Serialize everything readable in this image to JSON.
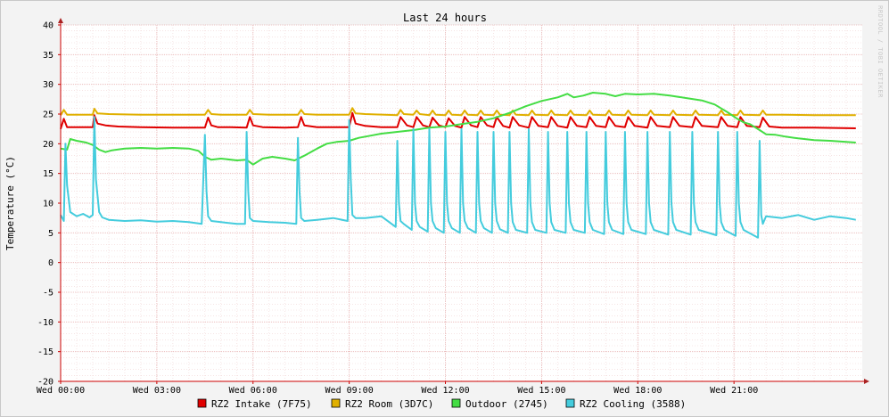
{
  "chart_data": {
    "type": "line",
    "title": "Last 24 hours",
    "ylabel": "Temperature (°C)",
    "xlabel": "",
    "watermark": "RRDTOOL / TOBI OETIKER",
    "ylim": [
      -20,
      40
    ],
    "yticks": [
      -20,
      -15,
      -10,
      -5,
      0,
      5,
      10,
      15,
      20,
      25,
      30,
      35,
      40
    ],
    "xlim": [
      0,
      25.0
    ],
    "xticks": [
      {
        "value": 0,
        "label": "Wed 00:00"
      },
      {
        "value": 3,
        "label": "Wed 03:00"
      },
      {
        "value": 6,
        "label": "Wed 06:00"
      },
      {
        "value": 9,
        "label": "Wed 09:00"
      },
      {
        "value": 12,
        "label": "Wed 12:00"
      },
      {
        "value": 15,
        "label": "Wed 15:00"
      },
      {
        "value": 18,
        "label": "Wed 18:00"
      },
      {
        "value": 21,
        "label": "Wed 21:00"
      }
    ],
    "grid": true,
    "legend_position": "bottom",
    "background": "#f3f3f3",
    "plot_background": "#ffffff",
    "grid_color": "#e8b4b4",
    "series": [
      {
        "name": "RZ2 Intake (7F75)",
        "color": "#e00000",
        "x": [
          0.0,
          0.1,
          0.2,
          0.5,
          1.0,
          1.05,
          1.15,
          1.4,
          1.8,
          2.5,
          3.5,
          4.5,
          4.6,
          4.7,
          4.9,
          5.3,
          5.8,
          5.9,
          6.0,
          6.3,
          7.0,
          7.4,
          7.5,
          7.6,
          8.0,
          8.8,
          9.0,
          9.1,
          9.2,
          9.5,
          10.0,
          10.5,
          10.6,
          10.8,
          11.0,
          11.1,
          11.3,
          11.5,
          11.6,
          11.8,
          12.0,
          12.1,
          12.3,
          12.5,
          12.6,
          12.8,
          13.0,
          13.1,
          13.3,
          13.5,
          13.6,
          13.8,
          14.0,
          14.1,
          14.3,
          14.6,
          14.7,
          14.9,
          15.2,
          15.3,
          15.5,
          15.8,
          15.9,
          16.1,
          16.4,
          16.5,
          16.7,
          17.0,
          17.1,
          17.3,
          17.6,
          17.7,
          17.9,
          18.3,
          18.4,
          18.6,
          19.0,
          19.1,
          19.3,
          19.7,
          19.8,
          20.0,
          20.5,
          20.6,
          20.8,
          21.1,
          21.2,
          21.4,
          21.8,
          21.9,
          22.1,
          22.5,
          23.5,
          24.8
        ],
        "y": [
          22.5,
          24.2,
          22.8,
          22.8,
          22.8,
          24.8,
          23.4,
          23.1,
          22.9,
          22.8,
          22.7,
          22.7,
          24.4,
          23.1,
          22.8,
          22.8,
          22.7,
          24.5,
          23.1,
          22.8,
          22.7,
          22.8,
          24.5,
          23.1,
          22.8,
          22.8,
          22.8,
          25.2,
          23.4,
          23.0,
          22.8,
          22.8,
          24.5,
          23.1,
          22.8,
          24.5,
          23.1,
          22.8,
          24.4,
          23.1,
          22.8,
          24.3,
          23.0,
          22.7,
          24.5,
          23.1,
          22.8,
          24.5,
          23.1,
          22.8,
          24.5,
          23.0,
          22.7,
          24.5,
          23.1,
          22.7,
          24.5,
          23.0,
          22.8,
          24.5,
          23.0,
          22.7,
          24.5,
          23.0,
          22.8,
          24.5,
          23.0,
          22.8,
          24.5,
          23.0,
          22.8,
          24.5,
          23.0,
          22.7,
          24.5,
          23.0,
          22.8,
          24.5,
          23.0,
          22.8,
          24.5,
          23.0,
          22.8,
          24.5,
          23.0,
          22.8,
          24.5,
          23.0,
          22.8,
          24.4,
          22.9,
          22.7,
          22.7,
          22.6
        ]
      },
      {
        "name": "RZ2 Room (3D7C)",
        "color": "#e0b000",
        "x": [
          0.0,
          0.1,
          0.2,
          0.5,
          1.0,
          1.05,
          1.15,
          1.5,
          2.5,
          3.5,
          4.5,
          4.6,
          4.7,
          5.0,
          5.8,
          5.9,
          6.0,
          6.5,
          7.4,
          7.5,
          7.6,
          8.0,
          9.0,
          9.1,
          9.2,
          9.5,
          10.5,
          10.6,
          10.7,
          11.0,
          11.1,
          11.2,
          11.5,
          11.6,
          11.7,
          12.0,
          12.1,
          12.2,
          12.5,
          12.6,
          12.7,
          13.0,
          13.1,
          13.2,
          13.5,
          13.6,
          13.7,
          14.0,
          14.1,
          14.2,
          14.6,
          14.7,
          14.8,
          15.2,
          15.3,
          15.4,
          15.8,
          15.9,
          16.0,
          16.4,
          16.5,
          16.6,
          17.0,
          17.1,
          17.2,
          17.6,
          17.7,
          17.8,
          18.3,
          18.4,
          18.5,
          19.0,
          19.1,
          19.2,
          19.7,
          19.8,
          19.9,
          20.5,
          20.6,
          20.7,
          21.1,
          21.2,
          21.3,
          21.8,
          21.9,
          22.0,
          22.5,
          23.5,
          24.8
        ],
        "y": [
          24.8,
          25.7,
          24.9,
          24.9,
          24.9,
          25.9,
          25.1,
          25.0,
          24.9,
          24.9,
          24.9,
          25.7,
          25.0,
          24.9,
          24.9,
          25.7,
          25.0,
          24.9,
          24.9,
          25.7,
          25.0,
          24.9,
          24.9,
          26.0,
          25.1,
          25.0,
          24.8,
          25.7,
          25.0,
          24.9,
          25.6,
          25.0,
          24.8,
          25.6,
          24.9,
          24.8,
          25.6,
          24.9,
          24.8,
          25.6,
          24.9,
          24.8,
          25.6,
          24.9,
          24.8,
          25.6,
          24.9,
          24.8,
          25.6,
          24.9,
          24.8,
          25.6,
          24.9,
          24.8,
          25.6,
          24.9,
          24.8,
          25.6,
          24.9,
          24.8,
          25.6,
          24.9,
          24.8,
          25.6,
          24.9,
          24.8,
          25.6,
          24.9,
          24.8,
          25.6,
          24.9,
          24.8,
          25.6,
          24.9,
          24.8,
          25.6,
          24.9,
          24.8,
          25.6,
          24.9,
          24.8,
          25.6,
          24.9,
          24.8,
          25.6,
          24.9,
          24.9,
          24.8,
          24.8
        ]
      },
      {
        "name": "Outdoor (2745)",
        "color": "#44dd44",
        "x": [
          0.0,
          0.2,
          0.3,
          0.5,
          0.8,
          1.0,
          1.2,
          1.4,
          1.6,
          2.0,
          2.5,
          3.0,
          3.5,
          4.0,
          4.3,
          4.5,
          4.7,
          5.0,
          5.5,
          5.8,
          6.0,
          6.3,
          6.6,
          7.0,
          7.3,
          7.6,
          8.0,
          8.3,
          8.6,
          9.0,
          9.3,
          9.6,
          10.0,
          10.5,
          11.0,
          11.5,
          12.0,
          12.5,
          13.0,
          13.5,
          14.0,
          14.5,
          15.0,
          15.5,
          15.8,
          16.0,
          16.3,
          16.6,
          17.0,
          17.3,
          17.6,
          18.0,
          18.5,
          19.0,
          19.5,
          20.0,
          20.4,
          20.8,
          21.1,
          21.3,
          21.5,
          21.8,
          22.0,
          22.3,
          22.6,
          23.0,
          23.5,
          24.0,
          24.5,
          24.8
        ],
        "y": [
          19.2,
          19.0,
          20.8,
          20.5,
          20.2,
          19.8,
          19.0,
          18.6,
          18.9,
          19.2,
          19.3,
          19.2,
          19.3,
          19.2,
          18.8,
          17.8,
          17.3,
          17.5,
          17.2,
          17.3,
          16.5,
          17.5,
          17.8,
          17.5,
          17.2,
          18.0,
          19.2,
          20.0,
          20.3,
          20.5,
          21.0,
          21.3,
          21.7,
          22.0,
          22.3,
          22.7,
          22.9,
          23.3,
          23.7,
          24.3,
          25.2,
          26.3,
          27.2,
          27.8,
          28.4,
          27.8,
          28.1,
          28.6,
          28.4,
          28.0,
          28.4,
          28.3,
          28.4,
          28.1,
          27.7,
          27.3,
          26.6,
          25.3,
          24.2,
          23.6,
          23.3,
          22.3,
          21.6,
          21.5,
          21.2,
          20.9,
          20.6,
          20.5,
          20.3,
          20.2
        ]
      },
      {
        "name": "RZ2 Cooling (3588)",
        "color": "#44ccdd",
        "x": [
          0.0,
          0.1,
          0.15,
          0.2,
          0.3,
          0.5,
          0.7,
          0.9,
          1.0,
          1.05,
          1.1,
          1.2,
          1.3,
          1.5,
          2.0,
          2.5,
          3.0,
          3.5,
          4.0,
          4.4,
          4.5,
          4.55,
          4.6,
          4.7,
          5.0,
          5.5,
          5.75,
          5.8,
          5.85,
          5.9,
          6.0,
          6.5,
          7.0,
          7.35,
          7.4,
          7.45,
          7.5,
          7.6,
          8.0,
          8.5,
          8.95,
          9.0,
          9.05,
          9.1,
          9.2,
          9.5,
          10.0,
          10.45,
          10.5,
          10.55,
          10.6,
          10.7,
          10.95,
          11.0,
          11.05,
          11.1,
          11.2,
          11.45,
          11.5,
          11.55,
          11.6,
          11.7,
          11.95,
          12.0,
          12.05,
          12.1,
          12.2,
          12.45,
          12.5,
          12.55,
          12.6,
          12.7,
          12.95,
          13.0,
          13.05,
          13.1,
          13.2,
          13.45,
          13.5,
          13.55,
          13.6,
          13.7,
          13.95,
          14.0,
          14.05,
          14.1,
          14.2,
          14.55,
          14.6,
          14.65,
          14.7,
          14.8,
          15.15,
          15.2,
          15.25,
          15.3,
          15.4,
          15.75,
          15.8,
          15.85,
          15.9,
          16.0,
          16.35,
          16.4,
          16.45,
          16.5,
          16.6,
          16.95,
          17.0,
          17.05,
          17.1,
          17.2,
          17.55,
          17.6,
          17.65,
          17.7,
          17.8,
          18.25,
          18.3,
          18.35,
          18.4,
          18.5,
          18.95,
          19.0,
          19.05,
          19.1,
          19.2,
          19.65,
          19.7,
          19.75,
          19.8,
          19.9,
          20.45,
          20.5,
          20.55,
          20.6,
          20.7,
          21.05,
          21.1,
          21.15,
          21.2,
          21.3,
          21.75,
          21.8,
          21.85,
          21.9,
          22.0,
          22.5,
          23.0,
          23.5,
          24.0,
          24.5,
          24.8
        ],
        "y": [
          8.0,
          7.0,
          20.0,
          13.0,
          8.5,
          7.8,
          8.2,
          7.6,
          8.0,
          24.5,
          14.0,
          8.5,
          7.6,
          7.2,
          7.0,
          7.1,
          6.9,
          7.0,
          6.8,
          6.5,
          21.5,
          12.0,
          7.8,
          7.0,
          6.8,
          6.5,
          6.5,
          22.0,
          12.0,
          7.5,
          7.0,
          6.8,
          6.7,
          6.5,
          21.0,
          12.0,
          7.5,
          7.0,
          7.2,
          7.5,
          7.0,
          24.0,
          14.0,
          8.0,
          7.5,
          7.5,
          7.8,
          6.0,
          20.5,
          10.0,
          7.0,
          6.5,
          5.5,
          22.5,
          10.0,
          7.0,
          6.0,
          5.2,
          22.5,
          10.0,
          7.0,
          5.8,
          5.0,
          22.0,
          10.0,
          7.0,
          5.8,
          5.0,
          22.5,
          10.0,
          7.0,
          5.8,
          5.0,
          22.0,
          10.0,
          7.0,
          5.8,
          5.0,
          22.0,
          10.0,
          7.0,
          5.6,
          5.0,
          22.0,
          10.0,
          6.8,
          5.5,
          5.0,
          22.5,
          10.0,
          6.8,
          5.5,
          5.0,
          22.0,
          10.0,
          6.8,
          5.5,
          5.0,
          22.0,
          10.0,
          6.8,
          5.5,
          5.0,
          22.0,
          10.0,
          6.8,
          5.5,
          4.8,
          22.0,
          10.0,
          6.8,
          5.5,
          4.8,
          22.0,
          10.0,
          6.8,
          5.5,
          4.8,
          22.0,
          10.0,
          6.8,
          5.5,
          4.7,
          22.0,
          10.0,
          6.8,
          5.5,
          4.7,
          22.0,
          10.0,
          6.8,
          5.5,
          4.6,
          22.0,
          10.0,
          6.8,
          5.5,
          4.5,
          22.0,
          10.0,
          6.8,
          5.5,
          4.2,
          20.5,
          8.0,
          6.5,
          7.8,
          7.5,
          8.0,
          7.2,
          7.8,
          7.5,
          7.2
        ]
      }
    ]
  }
}
